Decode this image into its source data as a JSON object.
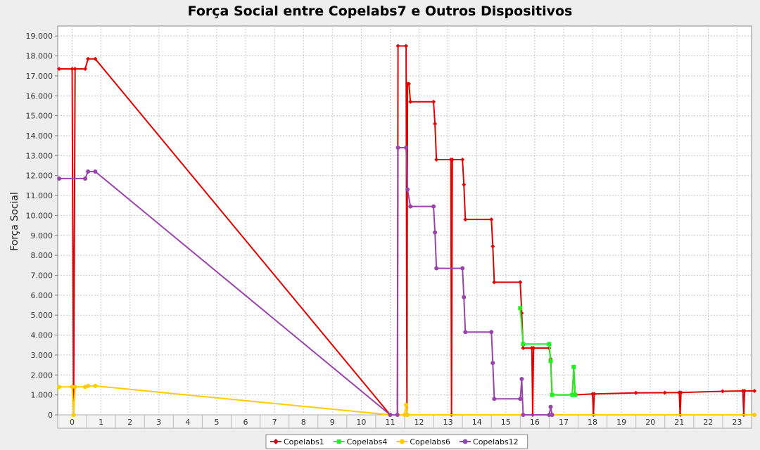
{
  "chart_data": {
    "type": "line",
    "title": "Força Social entre Copelabs7 e Outros Dispositivos",
    "xlabel": "",
    "ylabel": "Força Social",
    "ylim": [
      0,
      19500
    ],
    "y_ticks": [
      0,
      1000,
      2000,
      3000,
      4000,
      5000,
      6000,
      7000,
      8000,
      9000,
      10000,
      11000,
      12000,
      13000,
      14000,
      15000,
      16000,
      17000,
      18000,
      19000
    ],
    "y_tick_labels": [
      "0",
      "1.000",
      "2.000",
      "3.000",
      "4.000",
      "5.000",
      "6.000",
      "7.000",
      "8.000",
      "9.000",
      "10.000",
      "11.000",
      "12.000",
      "13.000",
      "14.000",
      "15.000",
      "16.000",
      "17.000",
      "18.000",
      "19.000"
    ],
    "x_categories": [
      "0",
      "1",
      "2",
      "3",
      "4",
      "5",
      "6",
      "7",
      "8",
      "9",
      "10",
      "11",
      "12",
      "13",
      "14",
      "15",
      "16",
      "17",
      "18",
      "19",
      "20",
      "21",
      "22",
      "23"
    ],
    "grid": true,
    "legend_position": "bottom-center",
    "series": [
      {
        "name": "Copelabs1",
        "color": "#e00000",
        "marker": "diamond",
        "points": [
          [
            -0.45,
            17350
          ],
          [
            0.0,
            17350
          ],
          [
            0.05,
            0
          ],
          [
            0.1,
            17350
          ],
          [
            0.45,
            17350
          ],
          [
            0.55,
            17850
          ],
          [
            0.8,
            17850
          ],
          [
            11.0,
            0
          ],
          [
            11.25,
            0
          ],
          [
            11.27,
            18500
          ],
          [
            11.55,
            18500
          ],
          [
            11.58,
            0
          ],
          [
            11.6,
            16600
          ],
          [
            11.65,
            16600
          ],
          [
            11.7,
            15700
          ],
          [
            12.5,
            15700
          ],
          [
            12.55,
            14600
          ],
          [
            12.6,
            12800
          ],
          [
            13.1,
            12800
          ],
          [
            13.12,
            0
          ],
          [
            13.15,
            12800
          ],
          [
            13.5,
            12800
          ],
          [
            13.55,
            11550
          ],
          [
            13.6,
            9800
          ],
          [
            14.5,
            9800
          ],
          [
            14.55,
            8450
          ],
          [
            14.6,
            6650
          ],
          [
            15.5,
            6650
          ],
          [
            15.55,
            5100
          ],
          [
            15.6,
            3350
          ],
          [
            15.9,
            3350
          ],
          [
            15.93,
            0
          ],
          [
            15.96,
            3350
          ],
          [
            16.5,
            3350
          ],
          [
            16.55,
            2800
          ],
          [
            16.6,
            1000
          ],
          [
            17.3,
            1000
          ],
          [
            17.35,
            2350
          ],
          [
            17.4,
            1000
          ],
          [
            18.0,
            1050
          ],
          [
            18.03,
            0
          ],
          [
            18.06,
            1050
          ],
          [
            19.5,
            1100
          ],
          [
            20.5,
            1110
          ],
          [
            21.0,
            1120
          ],
          [
            21.03,
            0
          ],
          [
            21.06,
            1120
          ],
          [
            22.5,
            1180
          ],
          [
            23.2,
            1200
          ],
          [
            23.23,
            0
          ],
          [
            23.26,
            1200
          ],
          [
            23.6,
            1200
          ]
        ]
      },
      {
        "name": "Copelabs4",
        "color": "#22ee22",
        "marker": "square",
        "points": [
          [
            15.5,
            5350
          ],
          [
            15.6,
            3550
          ],
          [
            16.5,
            3550
          ],
          [
            16.55,
            2700
          ],
          [
            16.6,
            1000
          ],
          [
            17.3,
            1000
          ],
          [
            17.35,
            2400
          ],
          [
            17.4,
            1000
          ]
        ]
      },
      {
        "name": "Copelabs6",
        "color": "#ffcc00",
        "marker": "circle",
        "points": [
          [
            -0.45,
            1400
          ],
          [
            0.0,
            1400
          ],
          [
            0.05,
            0
          ],
          [
            0.1,
            1400
          ],
          [
            0.45,
            1400
          ],
          [
            0.55,
            1450
          ],
          [
            0.8,
            1450
          ],
          [
            11.0,
            0
          ],
          [
            11.5,
            0
          ],
          [
            11.55,
            500
          ],
          [
            11.6,
            0
          ],
          [
            23.6,
            0
          ]
        ]
      },
      {
        "name": "Copelabs12",
        "color": "#9944aa",
        "marker": "circle",
        "points": [
          [
            -0.45,
            11850
          ],
          [
            0.45,
            11850
          ],
          [
            0.55,
            12200
          ],
          [
            0.8,
            12200
          ],
          [
            11.0,
            0
          ],
          [
            11.25,
            0
          ],
          [
            11.27,
            13400
          ],
          [
            11.55,
            13400
          ],
          [
            11.6,
            11300
          ],
          [
            11.7,
            10450
          ],
          [
            12.5,
            10450
          ],
          [
            12.55,
            9150
          ],
          [
            12.6,
            7350
          ],
          [
            13.5,
            7350
          ],
          [
            13.55,
            5900
          ],
          [
            13.6,
            4150
          ],
          [
            14.5,
            4150
          ],
          [
            14.55,
            2600
          ],
          [
            14.6,
            800
          ],
          [
            15.5,
            800
          ],
          [
            15.55,
            1800
          ],
          [
            15.6,
            0
          ],
          [
            16.5,
            0
          ],
          [
            16.55,
            400
          ],
          [
            16.6,
            0
          ]
        ]
      }
    ]
  }
}
